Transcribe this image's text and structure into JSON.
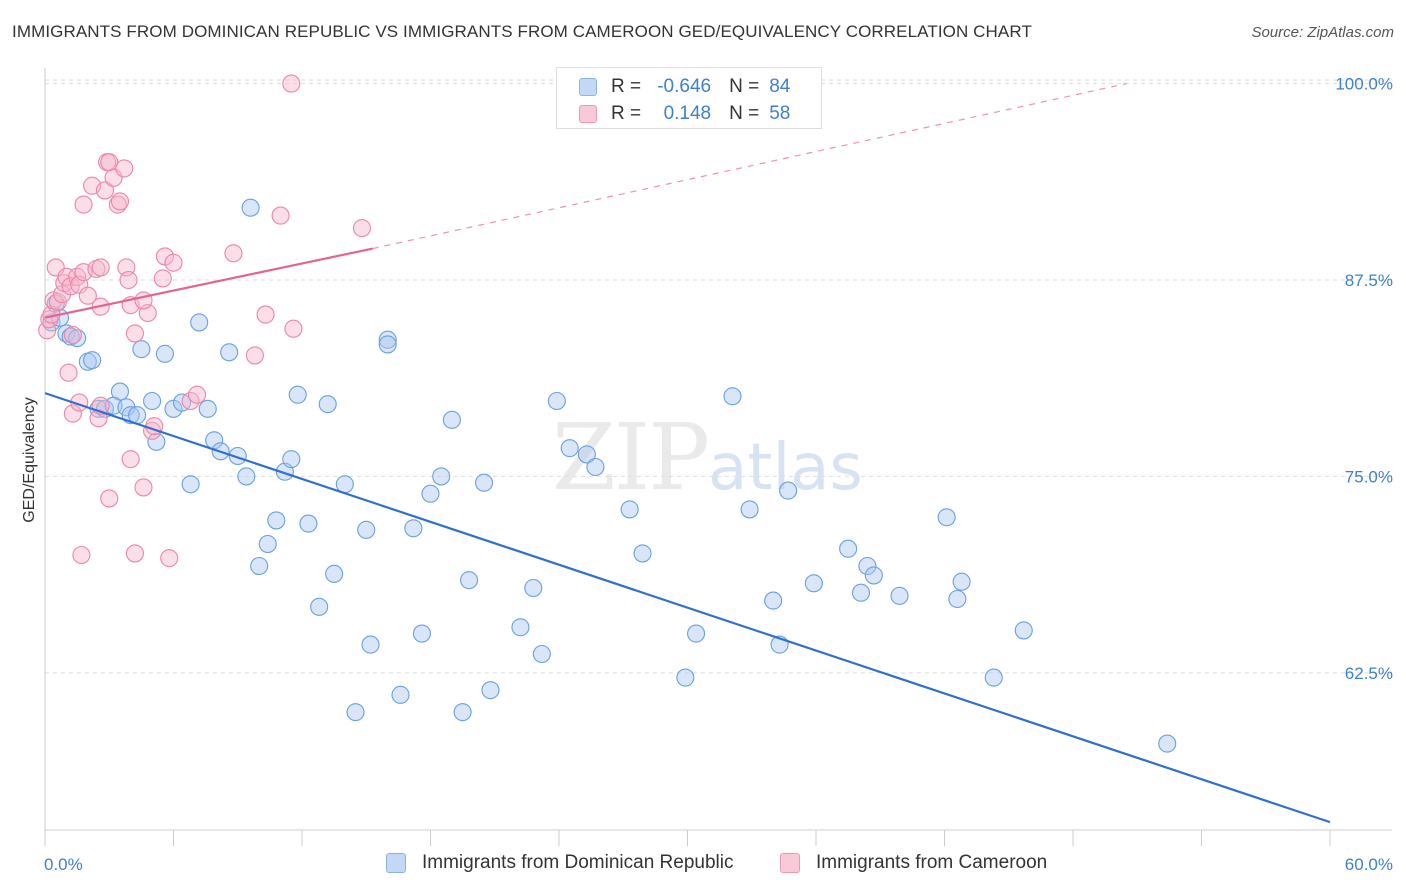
{
  "title": "IMMIGRANTS FROM DOMINICAN REPUBLIC VS IMMIGRANTS FROM CAMEROON GED/EQUIVALENCY CORRELATION CHART",
  "source": "Source: ZipAtlas.com",
  "watermark": {
    "zip": "ZIP",
    "atlas": "atlas"
  },
  "legend": {
    "rows": [
      {
        "r_label": "R =",
        "r_value": "-0.646",
        "n_label": "N =",
        "n_value": "84"
      },
      {
        "r_label": "R =",
        "r_value": "0.148",
        "n_label": "N =",
        "n_value": "58"
      }
    ]
  },
  "chart_data": {
    "type": "scatter",
    "xlabel": "",
    "ylabel": "GED/Equivalency",
    "xlim": [
      0,
      60
    ],
    "ylim": [
      52.5,
      101.5
    ],
    "x_tick_labels": [
      "0.0%",
      "60.0%"
    ],
    "y_ticks": [
      62.5,
      75.0,
      87.5,
      100.0
    ],
    "y_tick_labels": [
      "62.5%",
      "75.0%",
      "87.5%",
      "100.0%"
    ],
    "grid": true,
    "legend_position": "bottom",
    "colors": {
      "blue_fill": "#a9c8ef",
      "blue_stroke": "#6a9fe0",
      "blue_line": "#2f6fd0",
      "pink_fill": "#f7b6cb",
      "pink_stroke": "#ec86a6",
      "pink_line": "#e4648f",
      "tick_label": "#3f7fd0"
    },
    "series": [
      {
        "name": "Immigrants from Dominican Republic",
        "color": "blue",
        "trend": {
          "x": [
            0,
            60
          ],
          "y": [
            80.3,
            53.0
          ]
        },
        "points": [
          [
            0.3,
            84.8
          ],
          [
            0.5,
            86.0
          ],
          [
            0.7,
            85.1
          ],
          [
            1.0,
            84.1
          ],
          [
            1.2,
            83.9
          ],
          [
            1.5,
            83.8
          ],
          [
            2.0,
            82.3
          ],
          [
            2.2,
            82.4
          ],
          [
            2.5,
            79.3
          ],
          [
            2.8,
            79.3
          ],
          [
            3.5,
            80.4
          ],
          [
            3.2,
            79.5
          ],
          [
            3.8,
            79.4
          ],
          [
            4.0,
            78.9
          ],
          [
            4.3,
            78.9
          ],
          [
            4.5,
            83.1
          ],
          [
            5.0,
            79.8
          ],
          [
            5.2,
            77.2
          ],
          [
            5.6,
            82.8
          ],
          [
            6.0,
            79.3
          ],
          [
            6.4,
            79.7
          ],
          [
            6.8,
            74.5
          ],
          [
            7.2,
            84.8
          ],
          [
            7.6,
            79.3
          ],
          [
            7.9,
            77.3
          ],
          [
            8.2,
            76.6
          ],
          [
            8.6,
            82.9
          ],
          [
            9.0,
            76.3
          ],
          [
            9.4,
            75.0
          ],
          [
            9.6,
            92.1
          ],
          [
            10.0,
            69.3
          ],
          [
            10.4,
            70.7
          ],
          [
            10.8,
            72.2
          ],
          [
            11.2,
            75.3
          ],
          [
            11.5,
            76.1
          ],
          [
            11.8,
            80.2
          ],
          [
            12.3,
            72.0
          ],
          [
            12.8,
            66.7
          ],
          [
            13.2,
            79.6
          ],
          [
            13.5,
            68.8
          ],
          [
            14.0,
            74.5
          ],
          [
            14.5,
            60.0
          ],
          [
            15.0,
            71.6
          ],
          [
            15.2,
            64.3
          ],
          [
            16.0,
            83.7
          ],
          [
            16.0,
            83.4
          ],
          [
            16.6,
            61.1
          ],
          [
            17.2,
            71.7
          ],
          [
            17.6,
            65.0
          ],
          [
            18.0,
            73.9
          ],
          [
            18.5,
            75.0
          ],
          [
            19.0,
            78.6
          ],
          [
            19.5,
            60.0
          ],
          [
            19.8,
            68.4
          ],
          [
            20.5,
            74.6
          ],
          [
            20.8,
            61.4
          ],
          [
            22.2,
            65.4
          ],
          [
            22.8,
            67.9
          ],
          [
            23.2,
            63.7
          ],
          [
            23.9,
            79.8
          ],
          [
            24.5,
            76.8
          ],
          [
            25.3,
            76.4
          ],
          [
            25.7,
            75.6
          ],
          [
            27.3,
            72.9
          ],
          [
            27.9,
            70.1
          ],
          [
            29.9,
            62.2
          ],
          [
            30.4,
            65.0
          ],
          [
            32.1,
            80.1
          ],
          [
            32.9,
            72.9
          ],
          [
            34.0,
            67.1
          ],
          [
            34.3,
            64.3
          ],
          [
            34.7,
            74.1
          ],
          [
            35.9,
            68.2
          ],
          [
            37.5,
            70.4
          ],
          [
            38.1,
            67.6
          ],
          [
            38.4,
            69.3
          ],
          [
            38.7,
            68.7
          ],
          [
            39.9,
            67.4
          ],
          [
            42.1,
            72.4
          ],
          [
            42.6,
            67.2
          ],
          [
            42.8,
            68.3
          ],
          [
            44.3,
            62.2
          ],
          [
            45.7,
            65.2
          ],
          [
            52.4,
            58.0
          ]
        ]
      },
      {
        "name": "Immigrants from Cameroon",
        "color": "pink",
        "trend": {
          "x": [
            0,
            15.3
          ],
          "y": [
            85.1,
            89.5
          ],
          "dashed_x": [
            15.3,
            50.5
          ],
          "dashed_y": [
            89.5,
            100.0
          ]
        },
        "points": [
          [
            0.1,
            84.3
          ],
          [
            0.2,
            85.0
          ],
          [
            0.3,
            85.3
          ],
          [
            0.4,
            86.2
          ],
          [
            0.5,
            88.3
          ],
          [
            0.6,
            86.1
          ],
          [
            0.8,
            86.6
          ],
          [
            0.9,
            87.3
          ],
          [
            1.0,
            87.7
          ],
          [
            1.1,
            81.6
          ],
          [
            1.2,
            87.1
          ],
          [
            1.3,
            84.0
          ],
          [
            1.3,
            79.0
          ],
          [
            1.5,
            87.7
          ],
          [
            1.6,
            79.7
          ],
          [
            1.6,
            87.2
          ],
          [
            1.8,
            88.0
          ],
          [
            1.8,
            92.3
          ],
          [
            1.7,
            70.0
          ],
          [
            2.0,
            86.5
          ],
          [
            2.2,
            93.5
          ],
          [
            2.4,
            88.2
          ],
          [
            2.5,
            78.7
          ],
          [
            2.6,
            88.3
          ],
          [
            2.6,
            85.8
          ],
          [
            2.6,
            79.5
          ],
          [
            2.8,
            93.2
          ],
          [
            2.9,
            95.0
          ],
          [
            3.0,
            73.6
          ],
          [
            3.0,
            95.0
          ],
          [
            3.2,
            94.0
          ],
          [
            3.4,
            92.3
          ],
          [
            3.5,
            92.5
          ],
          [
            3.7,
            94.6
          ],
          [
            3.8,
            88.3
          ],
          [
            3.9,
            87.5
          ],
          [
            4.0,
            76.1
          ],
          [
            4.0,
            85.9
          ],
          [
            4.2,
            84.1
          ],
          [
            4.2,
            70.1
          ],
          [
            4.8,
            85.4
          ],
          [
            4.6,
            86.2
          ],
          [
            4.6,
            74.3
          ],
          [
            5.0,
            77.9
          ],
          [
            5.1,
            78.2
          ],
          [
            5.5,
            87.6
          ],
          [
            5.6,
            89.0
          ],
          [
            5.8,
            69.8
          ],
          [
            6.0,
            88.6
          ],
          [
            6.8,
            79.8
          ],
          [
            7.1,
            80.2
          ],
          [
            8.8,
            89.2
          ],
          [
            9.8,
            82.7
          ],
          [
            10.3,
            85.3
          ],
          [
            11.0,
            91.6
          ],
          [
            11.5,
            100.0
          ],
          [
            11.6,
            84.4
          ],
          [
            14.8,
            90.8
          ]
        ]
      }
    ]
  },
  "bottom_legend": {
    "items": [
      {
        "label": "Immigrants from Dominican Republic"
      },
      {
        "label": "Immigrants from Cameroon"
      }
    ]
  }
}
